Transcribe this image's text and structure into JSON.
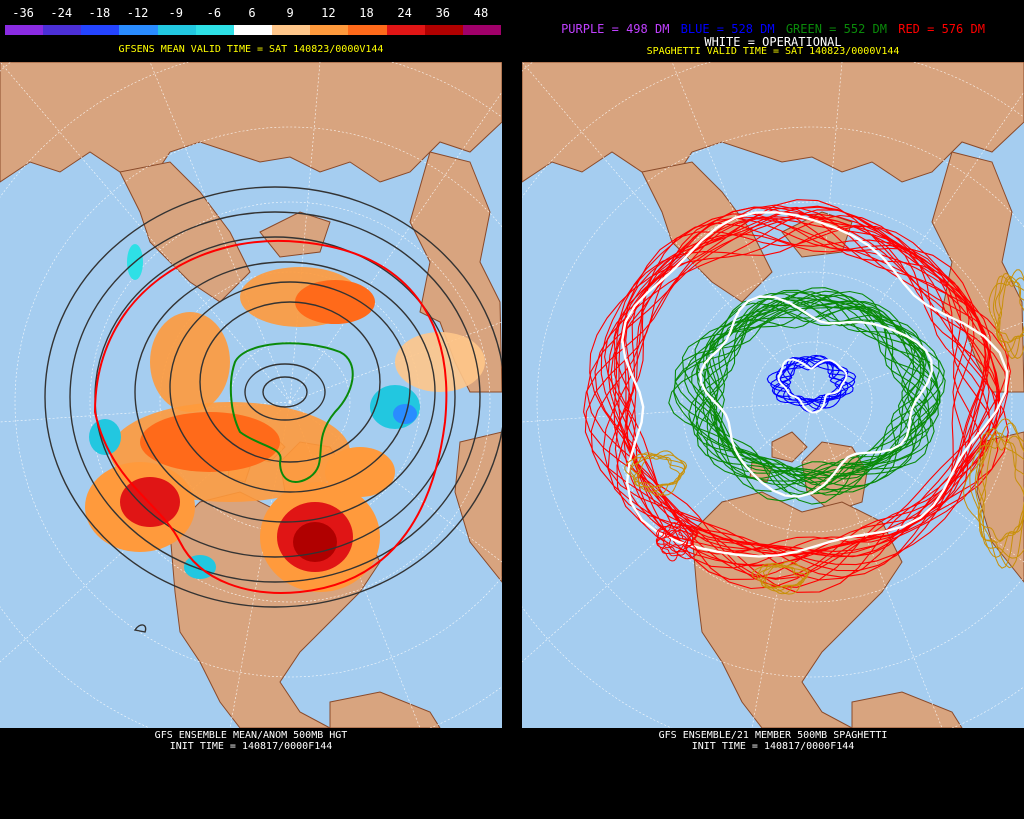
{
  "left": {
    "colorbar": {
      "labels": [
        "-36",
        "-24",
        "-18",
        "-12",
        "-9",
        "-6",
        "6",
        "9",
        "12",
        "18",
        "24",
        "36",
        "48"
      ],
      "colors": [
        "#8a2be2",
        "#4b2fd6",
        "#2444ff",
        "#2a8cff",
        "#22c7e0",
        "#2ee0e6",
        "#ffffff",
        "#ffc68a",
        "#ff9a3c",
        "#ff6a1a",
        "#e01515",
        "#b00000",
        "#a0006a"
      ]
    },
    "subtitle": "GFSENS MEAN VALID TIME = SAT 140823/0000V144",
    "footer_line1": "GFS ENSEMBLE MEAN/ANOM 500MB HGT",
    "footer_line2": "INIT TIME = 140817/0000F144"
  },
  "right": {
    "legend": {
      "purple": "PURPLE = 498 DM",
      "blue": "BLUE = 528 DM",
      "green": "GREEN = 552 DM",
      "red": "RED = 576 DM",
      "white": "WHITE = OPERATIONAL"
    },
    "subtitle": "SPAGHETTI VALID TIME = SAT 140823/0000V144",
    "footer_line1": "GFS ENSEMBLE/21 MEMBER 500MB SPAGHETTI",
    "footer_line2": "INIT TIME = 140817/0000F144"
  },
  "colors": {
    "ocean": "#a5cdf0",
    "land": "#d8a47f",
    "border": "#8a4a2a",
    "grid": "#ffffff",
    "contour": "#333333",
    "red": "#ff0000",
    "green": "#0a8a0a",
    "blue": "#0000ff",
    "purple": "#c040ff",
    "orange_contour": "#c8900a"
  }
}
